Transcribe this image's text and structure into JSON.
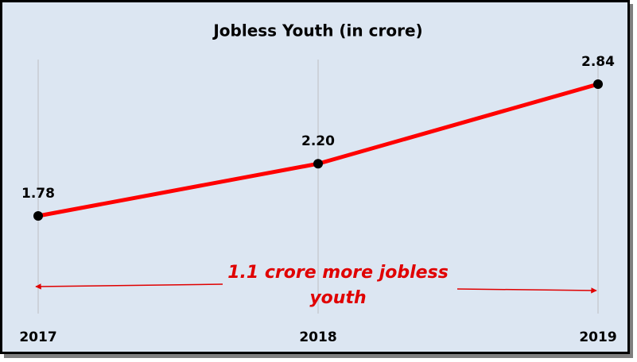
{
  "chart_data": {
    "type": "line",
    "title": "Jobless Youth (in crore)",
    "categories": [
      "2017",
      "2018",
      "2019"
    ],
    "series": [
      {
        "name": "Jobless Youth",
        "color": "#ff0000",
        "values": [
          1.78,
          2.2,
          2.84
        ],
        "value_labels": [
          "1.78",
          "2.20",
          "2.84"
        ]
      }
    ],
    "annotation": "1.1 crore more jobless youth",
    "grid": true
  }
}
